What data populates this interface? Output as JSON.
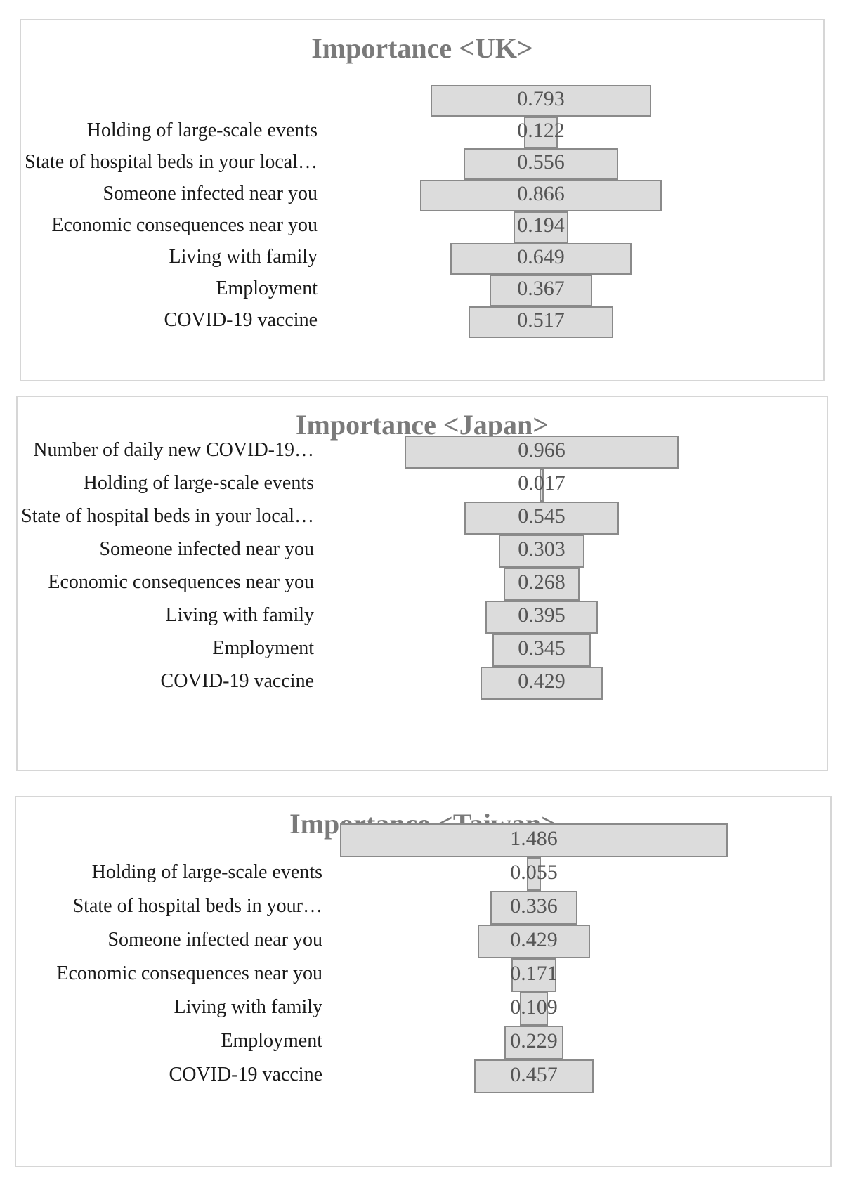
{
  "chart_data": [
    {
      "type": "bar",
      "title": "Importance <UK>",
      "categories": [
        "",
        "Holding of large-scale events",
        "State of hospital beds in your local…",
        "Someone infected near you",
        "Economic consequences near you",
        "Living with family",
        "Employment",
        "COVID-19 vaccine"
      ],
      "values": [
        0.793,
        0.122,
        0.556,
        0.866,
        0.194,
        0.649,
        0.367,
        0.517
      ],
      "value_labels": [
        "0.793",
        "0.122",
        "0.556",
        "0.866",
        "0.194",
        "0.649",
        "0.367",
        "0.517"
      ],
      "orientation": "horizontal-centered"
    },
    {
      "type": "bar",
      "title": "Importance <Japan>",
      "categories": [
        "Number of daily new COVID-19…",
        "Holding of large-scale events",
        "State of hospital beds in your local…",
        "Someone infected near you",
        "Economic consequences near you",
        "Living with family",
        "Employment",
        "COVID-19 vaccine"
      ],
      "values": [
        0.966,
        0.017,
        0.545,
        0.303,
        0.268,
        0.395,
        0.345,
        0.429
      ],
      "value_labels": [
        "0.966",
        "0.017",
        "0.545",
        "0.303",
        "0.268",
        "0.395",
        "0.345",
        "0.429"
      ],
      "orientation": "horizontal-centered"
    },
    {
      "type": "bar",
      "title": "Importance <Taiwan>",
      "categories": [
        "",
        "Holding of large-scale events",
        "State of hospital beds in your…",
        "Someone infected near you",
        "Economic consequences near you",
        "Living with family",
        "Employment",
        "COVID-19 vaccine"
      ],
      "values": [
        1.486,
        0.055,
        0.336,
        0.429,
        0.171,
        0.109,
        0.229,
        0.457
      ],
      "value_labels": [
        "1.486",
        "0.055",
        "0.336",
        "0.429",
        "0.171",
        "0.109",
        "0.229",
        "0.457"
      ],
      "orientation": "horizontal-centered"
    }
  ],
  "colors": {
    "bar_fill": "#dcdcdc",
    "bar_border": "#8a8a8a",
    "title": "#7a7a7a",
    "value_text": "#555555"
  }
}
